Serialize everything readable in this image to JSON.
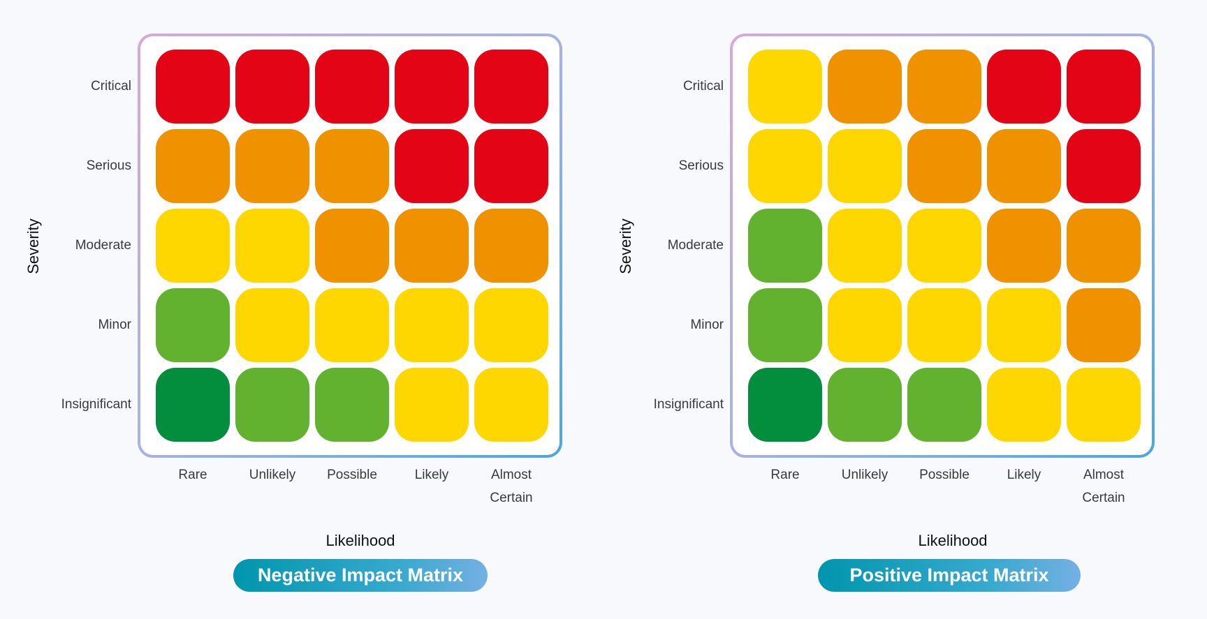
{
  "colors": {
    "dark_green": "#028e3c",
    "green": "#62b22f",
    "yellow": "#fed700",
    "orange": "#f09100",
    "red": "#e30515"
  },
  "chart_data": [
    {
      "type": "heatmap",
      "title": "Negative Impact Matrix",
      "xlabel": "Likelihood",
      "ylabel": "Severity",
      "x_categories": [
        "Rare",
        "Unlikely",
        "Possible",
        "Likely",
        "Almost Certain"
      ],
      "y_categories": [
        "Critical",
        "Serious",
        "Moderate",
        "Minor",
        "Insignificant"
      ],
      "cells": [
        [
          "red",
          "red",
          "red",
          "red",
          "red"
        ],
        [
          "orange",
          "orange",
          "orange",
          "red",
          "red"
        ],
        [
          "yellow",
          "yellow",
          "orange",
          "orange",
          "orange"
        ],
        [
          "green",
          "yellow",
          "yellow",
          "yellow",
          "yellow"
        ],
        [
          "dark_green",
          "green",
          "green",
          "yellow",
          "yellow"
        ]
      ]
    },
    {
      "type": "heatmap",
      "title": "Positive Impact Matrix",
      "xlabel": "Likelihood",
      "ylabel": "Severity",
      "x_categories": [
        "Rare",
        "Unlikely",
        "Possible",
        "Likely",
        "Almost Certain"
      ],
      "y_categories": [
        "Critical",
        "Serious",
        "Moderate",
        "Minor",
        "Insignificant"
      ],
      "cells": [
        [
          "yellow",
          "orange",
          "orange",
          "red",
          "red"
        ],
        [
          "yellow",
          "yellow",
          "orange",
          "orange",
          "red"
        ],
        [
          "green",
          "yellow",
          "yellow",
          "orange",
          "orange"
        ],
        [
          "green",
          "yellow",
          "yellow",
          "yellow",
          "orange"
        ],
        [
          "dark_green",
          "green",
          "green",
          "yellow",
          "yellow"
        ]
      ]
    }
  ]
}
